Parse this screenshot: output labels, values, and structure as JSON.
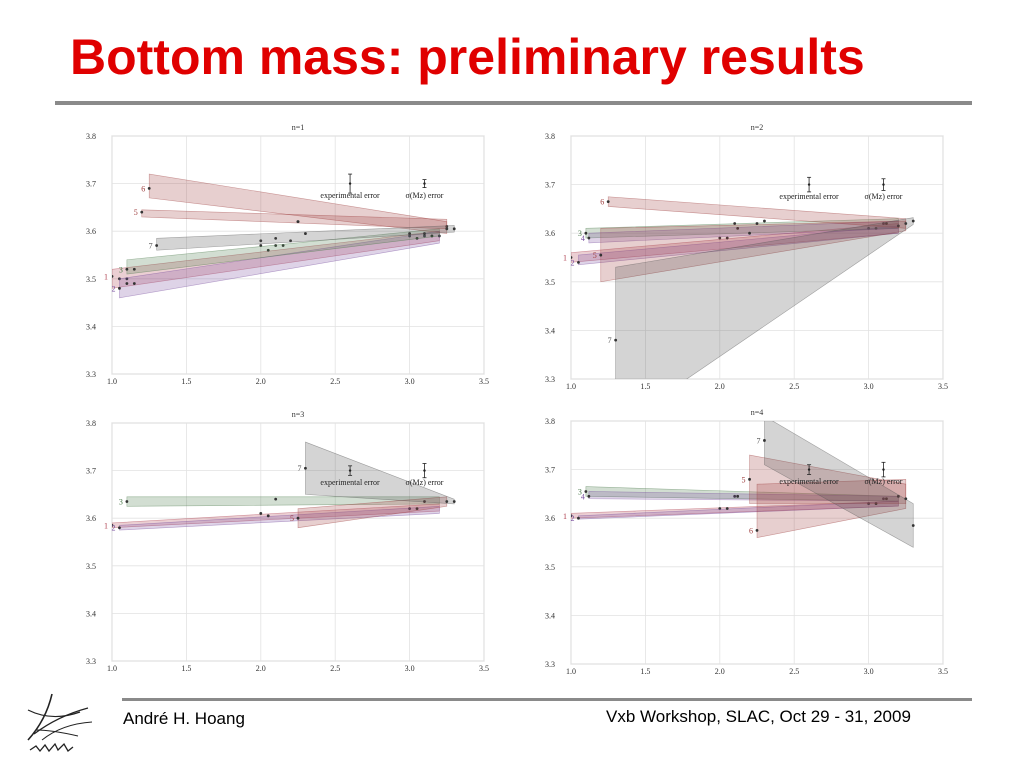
{
  "slide": {
    "title": "Bottom mass: preliminary results",
    "footer_left": "André H. Hoang",
    "footer_right": "Vxb Workshop, SLAC, Oct 29 - 31, 2009",
    "title_color": "#e00000"
  },
  "chart_data": [
    {
      "type": "scatter",
      "title": "n=1",
      "xlim": [
        1.0,
        3.5
      ],
      "ylim": [
        3.3,
        3.8
      ],
      "xticks": [
        "1.0",
        "1.5",
        "2.0",
        "2.5",
        "3.0",
        "3.5"
      ],
      "yticks": [
        "3.3",
        "3.4",
        "3.5",
        "3.6",
        "3.7",
        "3.8"
      ],
      "grid": true,
      "annotations": [
        "experimental error",
        "σ(Mz) error"
      ],
      "error_markers": [
        {
          "x": 2.6,
          "y": 3.7,
          "err": 0.02
        },
        {
          "x": 3.1,
          "y": 3.7,
          "err": 0.007
        }
      ],
      "series": [
        {
          "name": "1",
          "color": "#b04050",
          "points": [
            [
              1.0,
              3.505
            ],
            [
              1.05,
              3.5
            ],
            [
              1.1,
              3.5
            ],
            [
              2.0,
              3.57
            ],
            [
              2.1,
              3.57
            ],
            [
              2.2,
              3.58
            ],
            [
              3.0,
              3.59
            ],
            [
              3.1,
              3.59
            ],
            [
              3.2,
              3.59
            ]
          ],
          "band": [
            [
              1.0,
              3.48,
              3.52
            ],
            [
              3.2,
              3.58,
              3.6
            ]
          ]
        },
        {
          "name": "2",
          "color": "#7a50a0",
          "points": [
            [
              1.05,
              3.48
            ],
            [
              1.1,
              3.49
            ],
            [
              1.15,
              3.49
            ],
            [
              2.05,
              3.56
            ],
            [
              2.15,
              3.57
            ],
            [
              3.05,
              3.585
            ],
            [
              3.15,
              3.59
            ]
          ],
          "band": [
            [
              1.05,
              3.46,
              3.5
            ],
            [
              3.2,
              3.575,
              3.6
            ]
          ]
        },
        {
          "name": "3",
          "color": "#4a7a4a",
          "points": [
            [
              1.1,
              3.52
            ],
            [
              1.15,
              3.52
            ],
            [
              2.0,
              3.58
            ],
            [
              2.1,
              3.585
            ],
            [
              3.0,
              3.595
            ],
            [
              3.1,
              3.595
            ]
          ],
          "band": [
            [
              1.1,
              3.51,
              3.54
            ],
            [
              3.2,
              3.59,
              3.605
            ]
          ]
        },
        {
          "name": "5",
          "color": "#a04040",
          "points": [
            [
              1.2,
              3.64
            ],
            [
              2.25,
              3.62
            ],
            [
              3.25,
              3.61
            ]
          ],
          "band": [
            [
              1.2,
              3.63,
              3.645
            ],
            [
              3.25,
              3.605,
              3.625
            ]
          ]
        },
        {
          "name": "6",
          "color": "#a04040",
          "points": [
            [
              1.25,
              3.69
            ],
            [
              2.25,
              3.62
            ],
            [
              3.25,
              3.605
            ]
          ],
          "band": [
            [
              1.25,
              3.67,
              3.72
            ],
            [
              3.25,
              3.595,
              3.62
            ]
          ]
        },
        {
          "name": "7",
          "color": "#555555",
          "points": [
            [
              1.3,
              3.57
            ],
            [
              2.3,
              3.595
            ],
            [
              3.3,
              3.605
            ]
          ],
          "band": [
            [
              1.3,
              3.56,
              3.585
            ],
            [
              3.3,
              3.598,
              3.612
            ]
          ]
        }
      ]
    },
    {
      "type": "scatter",
      "title": "n=2",
      "xlim": [
        1.0,
        3.5
      ],
      "ylim": [
        3.3,
        3.8
      ],
      "xticks": [
        "1.0",
        "1.5",
        "2.0",
        "2.5",
        "3.0",
        "3.5"
      ],
      "yticks": [
        "3.3",
        "3.4",
        "3.5",
        "3.6",
        "3.7",
        "3.8"
      ],
      "grid": true,
      "annotations": [
        "experimental error",
        "σ(Mz) error"
      ],
      "error_markers": [
        {
          "x": 2.6,
          "y": 3.7,
          "err": 0.015
        },
        {
          "x": 3.1,
          "y": 3.7,
          "err": 0.012
        }
      ],
      "series": [
        {
          "name": "1",
          "color": "#b04050",
          "points": [
            [
              1.0,
              3.55
            ],
            [
              2.0,
              3.59
            ],
            [
              3.0,
              3.61
            ]
          ],
          "band": [
            [
              1.0,
              3.54,
              3.56
            ],
            [
              3.2,
              3.6,
              3.62
            ]
          ]
        },
        {
          "name": "2",
          "color": "#7a50a0",
          "points": [
            [
              1.05,
              3.54
            ],
            [
              2.05,
              3.59
            ],
            [
              3.05,
              3.61
            ]
          ],
          "band": [
            [
              1.05,
              3.535,
              3.555
            ],
            [
              3.2,
              3.6,
              3.615
            ]
          ]
        },
        {
          "name": "3",
          "color": "#4a7a4a",
          "points": [
            [
              1.1,
              3.6
            ],
            [
              2.1,
              3.62
            ],
            [
              3.1,
              3.62
            ]
          ],
          "band": [
            [
              1.1,
              3.59,
              3.61
            ],
            [
              3.2,
              3.61,
              3.63
            ]
          ]
        },
        {
          "name": "4",
          "color": "#7a50a0",
          "points": [
            [
              1.12,
              3.59
            ],
            [
              2.12,
              3.61
            ],
            [
              3.12,
              3.62
            ]
          ],
          "band": [
            [
              1.12,
              3.58,
              3.6
            ],
            [
              3.2,
              3.61,
              3.625
            ]
          ]
        },
        {
          "name": "5",
          "color": "#a04040",
          "points": [
            [
              1.2,
              3.555
            ],
            [
              2.2,
              3.6
            ],
            [
              3.2,
              3.615
            ]
          ],
          "band": [
            [
              1.2,
              3.5,
              3.61
            ],
            [
              3.25,
              3.605,
              3.625
            ]
          ]
        },
        {
          "name": "6",
          "color": "#a04040",
          "points": [
            [
              1.25,
              3.665
            ],
            [
              2.25,
              3.62
            ],
            [
              3.25,
              3.62
            ]
          ],
          "band": [
            [
              1.25,
              3.655,
              3.675
            ],
            [
              3.25,
              3.61,
              3.63
            ]
          ]
        },
        {
          "name": "7",
          "color": "#555555",
          "points": [
            [
              1.3,
              3.38
            ],
            [
              2.3,
              3.625
            ],
            [
              3.3,
              3.625
            ]
          ],
          "band": [
            [
              1.3,
              3.2,
              3.53
            ],
            [
              3.3,
              3.618,
              3.632
            ]
          ]
        }
      ]
    },
    {
      "type": "scatter",
      "title": "n=3",
      "xlim": [
        1.0,
        3.5
      ],
      "ylim": [
        3.3,
        3.8
      ],
      "xticks": [
        "1.0",
        "1.5",
        "2.0",
        "2.5",
        "3.0",
        "3.5"
      ],
      "yticks": [
        "3.3",
        "3.4",
        "3.5",
        "3.6",
        "3.7",
        "3.8"
      ],
      "grid": true,
      "annotations": [
        "experimental error",
        "σ(Mz) error"
      ],
      "error_markers": [
        {
          "x": 2.6,
          "y": 3.7,
          "err": 0.01
        },
        {
          "x": 3.1,
          "y": 3.7,
          "err": 0.015
        }
      ],
      "series": [
        {
          "name": "1",
          "color": "#b04050",
          "points": [
            [
              1.0,
              3.585
            ],
            [
              2.0,
              3.61
            ],
            [
              3.0,
              3.62
            ]
          ],
          "band": [
            [
              1.0,
              3.58,
              3.59
            ],
            [
              3.2,
              3.615,
              3.63
            ]
          ]
        },
        {
          "name": "2",
          "color": "#7a50a0",
          "points": [
            [
              1.05,
              3.58
            ],
            [
              2.05,
              3.605
            ],
            [
              3.05,
              3.62
            ]
          ],
          "band": [
            [
              1.05,
              3.575,
              3.585
            ],
            [
              3.2,
              3.61,
              3.625
            ]
          ]
        },
        {
          "name": "3",
          "color": "#4a7a4a",
          "points": [
            [
              1.1,
              3.635
            ],
            [
              2.1,
              3.64
            ],
            [
              3.1,
              3.635
            ]
          ],
          "band": [
            [
              1.1,
              3.625,
              3.645
            ],
            [
              3.2,
              3.63,
              3.645
            ]
          ]
        },
        {
          "name": "5",
          "color": "#a04040",
          "points": [
            [
              2.25,
              3.6
            ],
            [
              3.25,
              3.635
            ]
          ],
          "band": [
            [
              2.25,
              3.58,
              3.62
            ],
            [
              3.25,
              3.625,
              3.645
            ]
          ]
        },
        {
          "name": "7",
          "color": "#555555",
          "points": [
            [
              2.3,
              3.705
            ],
            [
              3.3,
              3.635
            ]
          ],
          "band": [
            [
              2.3,
              3.65,
              3.76
            ],
            [
              3.3,
              3.63,
              3.64
            ]
          ]
        }
      ]
    },
    {
      "type": "scatter",
      "title": "n=4",
      "xlim": [
        1.0,
        3.5
      ],
      "ylim": [
        3.3,
        3.8
      ],
      "xticks": [
        "1.0",
        "1.5",
        "2.0",
        "2.5",
        "3.0",
        "3.5"
      ],
      "yticks": [
        "3.3",
        "3.4",
        "3.5",
        "3.6",
        "3.7",
        "3.8"
      ],
      "grid": true,
      "annotations": [
        "experimental error",
        "σ(Mz) error"
      ],
      "error_markers": [
        {
          "x": 2.6,
          "y": 3.7,
          "err": 0.01
        },
        {
          "x": 3.1,
          "y": 3.7,
          "err": 0.015
        }
      ],
      "series": [
        {
          "name": "1",
          "color": "#b04050",
          "points": [
            [
              1.0,
              3.605
            ],
            [
              2.0,
              3.62
            ],
            [
              3.0,
              3.63
            ]
          ],
          "band": [
            [
              1.0,
              3.6,
              3.61
            ],
            [
              3.2,
              3.625,
              3.635
            ]
          ]
        },
        {
          "name": "2",
          "color": "#7a50a0",
          "points": [
            [
              1.05,
              3.6
            ],
            [
              2.05,
              3.62
            ],
            [
              3.05,
              3.63
            ]
          ],
          "band": [
            [
              1.05,
              3.598,
              3.605
            ],
            [
              3.2,
              3.625,
              3.635
            ]
          ]
        },
        {
          "name": "3",
          "color": "#4a7a4a",
          "points": [
            [
              1.1,
              3.655
            ],
            [
              2.1,
              3.645
            ],
            [
              3.1,
              3.64
            ]
          ],
          "band": [
            [
              1.1,
              3.645,
              3.665
            ],
            [
              3.2,
              3.635,
              3.645
            ]
          ]
        },
        {
          "name": "4",
          "color": "#7a50a0",
          "points": [
            [
              1.12,
              3.645
            ],
            [
              2.12,
              3.645
            ],
            [
              3.12,
              3.64
            ]
          ],
          "band": [
            [
              1.12,
              3.64,
              3.655
            ],
            [
              3.2,
              3.635,
              3.645
            ]
          ]
        },
        {
          "name": "5",
          "color": "#a04040",
          "points": [
            [
              2.2,
              3.68
            ],
            [
              3.2,
              3.645
            ]
          ],
          "band": [
            [
              2.2,
              3.63,
              3.73
            ],
            [
              3.25,
              3.63,
              3.67
            ]
          ]
        },
        {
          "name": "6",
          "color": "#a04040",
          "points": [
            [
              2.25,
              3.575
            ],
            [
              3.25,
              3.64
            ]
          ],
          "band": [
            [
              2.25,
              3.56,
              3.67
            ],
            [
              3.25,
              3.62,
              3.68
            ]
          ]
        },
        {
          "name": "7",
          "color": "#555555",
          "points": [
            [
              2.3,
              3.76
            ],
            [
              3.3,
              3.585
            ]
          ],
          "band": [
            [
              2.3,
              3.71,
              3.81
            ],
            [
              3.3,
              3.54,
              3.63
            ]
          ]
        }
      ]
    }
  ]
}
